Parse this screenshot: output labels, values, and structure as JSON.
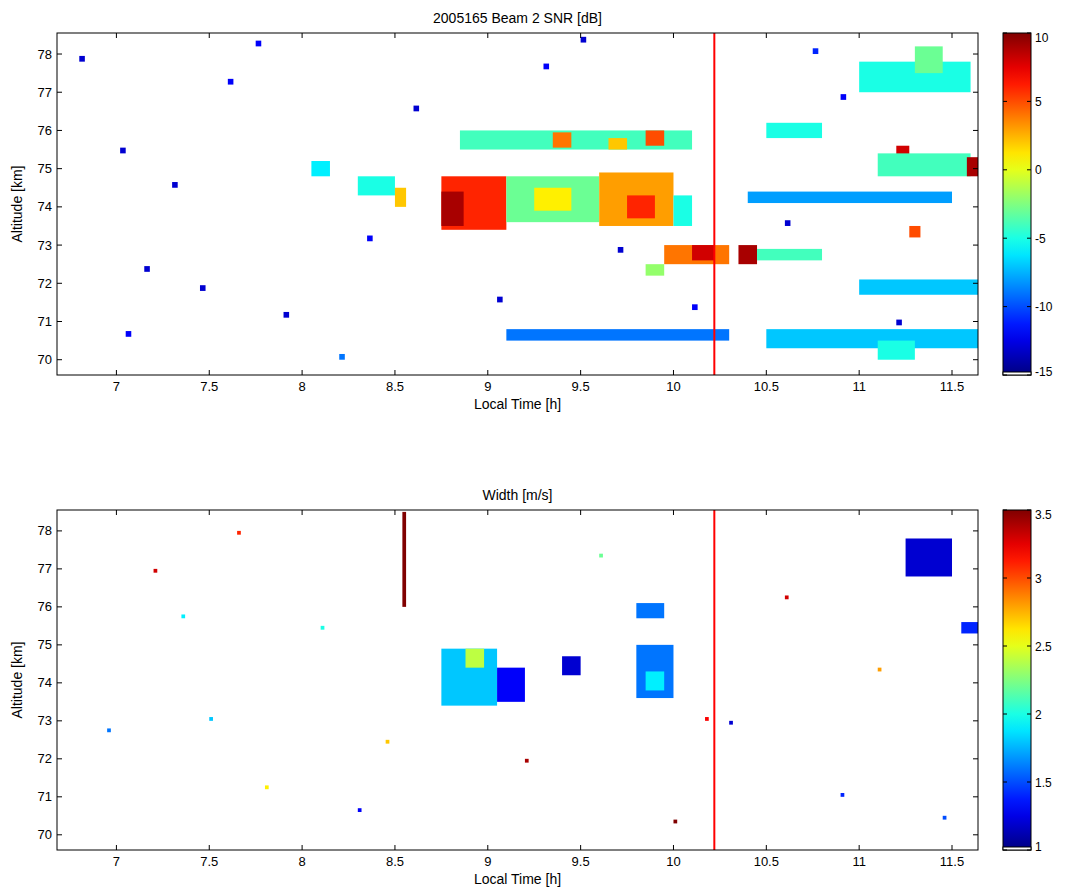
{
  "chart_data": [
    {
      "type": "heatmap",
      "title": "2005165 Beam 2 SNR [dB]",
      "x_label": "Local Time [h]",
      "y_label": "Altitude [km]",
      "xlim": [
        6.68,
        11.64
      ],
      "ylim": [
        69.6,
        78.55
      ],
      "xticks": [
        7,
        7.5,
        8,
        8.5,
        9,
        9.5,
        10,
        10.5,
        11,
        11.5
      ],
      "yticks": [
        70,
        71,
        72,
        73,
        74,
        75,
        76,
        77,
        78
      ],
      "vline": 10.22,
      "colorbar": {
        "lim": [
          -15,
          10
        ],
        "ticks": [
          -15,
          -10,
          -5,
          0,
          5,
          10
        ]
      },
      "patches": [
        [
          8.75,
          9.1,
          73.4,
          74.8,
          6
        ],
        [
          8.75,
          8.87,
          73.5,
          74.4,
          9
        ],
        [
          9.1,
          9.6,
          73.6,
          74.8,
          -3
        ],
        [
          9.25,
          9.45,
          73.9,
          74.5,
          1
        ],
        [
          9.6,
          10.0,
          73.5,
          74.9,
          3
        ],
        [
          9.75,
          9.9,
          73.7,
          74.3,
          6
        ],
        [
          10.0,
          10.1,
          73.5,
          74.3,
          -5
        ],
        [
          8.85,
          10.1,
          75.5,
          76.0,
          -4
        ],
        [
          9.35,
          9.45,
          75.55,
          75.95,
          4
        ],
        [
          9.85,
          9.95,
          75.6,
          76.0,
          5
        ],
        [
          9.65,
          9.75,
          75.5,
          75.8,
          2
        ],
        [
          8.3,
          8.5,
          74.3,
          74.8,
          -5
        ],
        [
          8.5,
          8.56,
          74.0,
          74.5,
          2
        ],
        [
          8.05,
          8.15,
          74.8,
          75.2,
          -6
        ],
        [
          9.95,
          10.3,
          72.5,
          73.0,
          4
        ],
        [
          10.1,
          10.22,
          72.6,
          73.0,
          8
        ],
        [
          10.35,
          10.45,
          72.5,
          73.0,
          9
        ],
        [
          10.45,
          10.8,
          72.6,
          72.9,
          -4
        ],
        [
          9.85,
          9.95,
          72.2,
          72.5,
          -2
        ],
        [
          10.5,
          10.8,
          75.8,
          76.2,
          -5
        ],
        [
          11.0,
          11.6,
          77.0,
          77.8,
          -5
        ],
        [
          11.3,
          11.45,
          77.5,
          78.2,
          -3
        ],
        [
          11.2,
          11.27,
          75.3,
          75.6,
          8
        ],
        [
          11.1,
          11.6,
          74.8,
          75.4,
          -4
        ],
        [
          11.58,
          11.64,
          74.8,
          75.3,
          9
        ],
        [
          10.4,
          11.5,
          74.1,
          74.4,
          -8
        ],
        [
          11.0,
          11.64,
          71.7,
          72.1,
          -7
        ],
        [
          10.5,
          11.64,
          70.3,
          70.8,
          -7
        ],
        [
          11.1,
          11.3,
          70.0,
          70.5,
          -5
        ],
        [
          9.1,
          10.3,
          70.5,
          70.8,
          -9
        ],
        [
          11.27,
          11.33,
          73.2,
          73.5,
          5
        ],
        [
          7.02,
          7.05,
          75.4,
          75.55,
          -13
        ],
        [
          7.3,
          7.33,
          74.5,
          74.65,
          -13
        ],
        [
          7.6,
          7.63,
          77.2,
          77.35,
          -12
        ],
        [
          7.9,
          7.93,
          71.1,
          71.25,
          -13
        ],
        [
          8.2,
          8.23,
          70.0,
          70.15,
          -9
        ],
        [
          6.8,
          6.83,
          77.8,
          77.95,
          -13
        ],
        [
          7.75,
          7.78,
          78.2,
          78.35,
          -12
        ],
        [
          8.6,
          8.63,
          76.5,
          76.65,
          -13
        ],
        [
          9.05,
          9.08,
          71.5,
          71.65,
          -13
        ],
        [
          9.3,
          9.33,
          77.6,
          77.75,
          -12
        ],
        [
          9.7,
          9.73,
          72.8,
          72.95,
          -13
        ],
        [
          10.1,
          10.13,
          71.3,
          71.45,
          -12
        ],
        [
          10.6,
          10.63,
          73.5,
          73.65,
          -13
        ],
        [
          10.9,
          10.93,
          76.8,
          76.95,
          -12
        ],
        [
          11.2,
          11.23,
          70.9,
          71.05,
          -13
        ],
        [
          7.15,
          7.18,
          72.3,
          72.45,
          -13
        ],
        [
          8.35,
          8.38,
          73.1,
          73.25,
          -12
        ],
        [
          9.5,
          9.53,
          78.3,
          78.45,
          -13
        ],
        [
          10.75,
          10.78,
          78.0,
          78.15,
          -11
        ],
        [
          7.05,
          7.08,
          70.6,
          70.75,
          -12
        ],
        [
          7.45,
          7.48,
          71.8,
          71.95,
          -13
        ]
      ]
    },
    {
      "type": "heatmap",
      "title": "Width [m/s]",
      "x_label": "Local Time [h]",
      "y_label": "Altitude [km]",
      "xlim": [
        6.68,
        11.64
      ],
      "ylim": [
        69.6,
        78.55
      ],
      "xticks": [
        7,
        7.5,
        8,
        8.5,
        9,
        9.5,
        10,
        10.5,
        11,
        11.5
      ],
      "yticks": [
        70,
        71,
        72,
        73,
        74,
        75,
        76,
        77,
        78
      ],
      "vline": 10.22,
      "colorbar": {
        "lim": [
          1,
          3.5
        ],
        "ticks": [
          1,
          1.5,
          2,
          2.5,
          3,
          3.5
        ]
      },
      "patches": [
        [
          8.75,
          9.05,
          73.4,
          74.9,
          1.8
        ],
        [
          8.88,
          8.98,
          74.4,
          74.9,
          2.4
        ],
        [
          9.05,
          9.2,
          73.5,
          74.4,
          1.3
        ],
        [
          9.4,
          9.5,
          74.2,
          74.7,
          1.2
        ],
        [
          9.8,
          10.0,
          73.6,
          75.0,
          1.6
        ],
        [
          9.85,
          9.95,
          73.8,
          74.3,
          1.9
        ],
        [
          9.8,
          9.95,
          75.7,
          76.1,
          1.6
        ],
        [
          11.25,
          11.5,
          76.8,
          77.8,
          1.2
        ],
        [
          11.55,
          11.64,
          75.3,
          75.6,
          1.4
        ],
        [
          8.54,
          8.56,
          76.0,
          78.5,
          3.5
        ],
        [
          7.2,
          7.22,
          76.9,
          77.0,
          3.3
        ],
        [
          7.5,
          7.52,
          73.0,
          73.1,
          1.8
        ],
        [
          7.8,
          7.82,
          71.2,
          71.3,
          2.6
        ],
        [
          8.1,
          8.12,
          75.4,
          75.5,
          2.0
        ],
        [
          6.95,
          6.97,
          72.7,
          72.8,
          1.6
        ],
        [
          7.65,
          7.67,
          77.9,
          78.0,
          3.1
        ],
        [
          8.3,
          8.32,
          70.6,
          70.7,
          1.3
        ],
        [
          9.2,
          9.22,
          71.9,
          72.0,
          3.4
        ],
        [
          9.6,
          9.62,
          77.3,
          77.4,
          2.2
        ],
        [
          10.3,
          10.32,
          72.9,
          73.0,
          1.2
        ],
        [
          10.6,
          10.62,
          76.2,
          76.3,
          3.3
        ],
        [
          10.9,
          10.92,
          71.0,
          71.1,
          1.4
        ],
        [
          11.1,
          11.12,
          74.3,
          74.4,
          2.8
        ],
        [
          11.45,
          11.47,
          70.4,
          70.5,
          1.5
        ],
        [
          8.45,
          8.47,
          72.4,
          72.5,
          2.7
        ],
        [
          7.35,
          7.37,
          75.7,
          75.8,
          1.9
        ],
        [
          10.0,
          10.02,
          70.3,
          70.4,
          3.5
        ],
        [
          10.17,
          10.19,
          73.0,
          73.1,
          3.2
        ]
      ]
    }
  ]
}
